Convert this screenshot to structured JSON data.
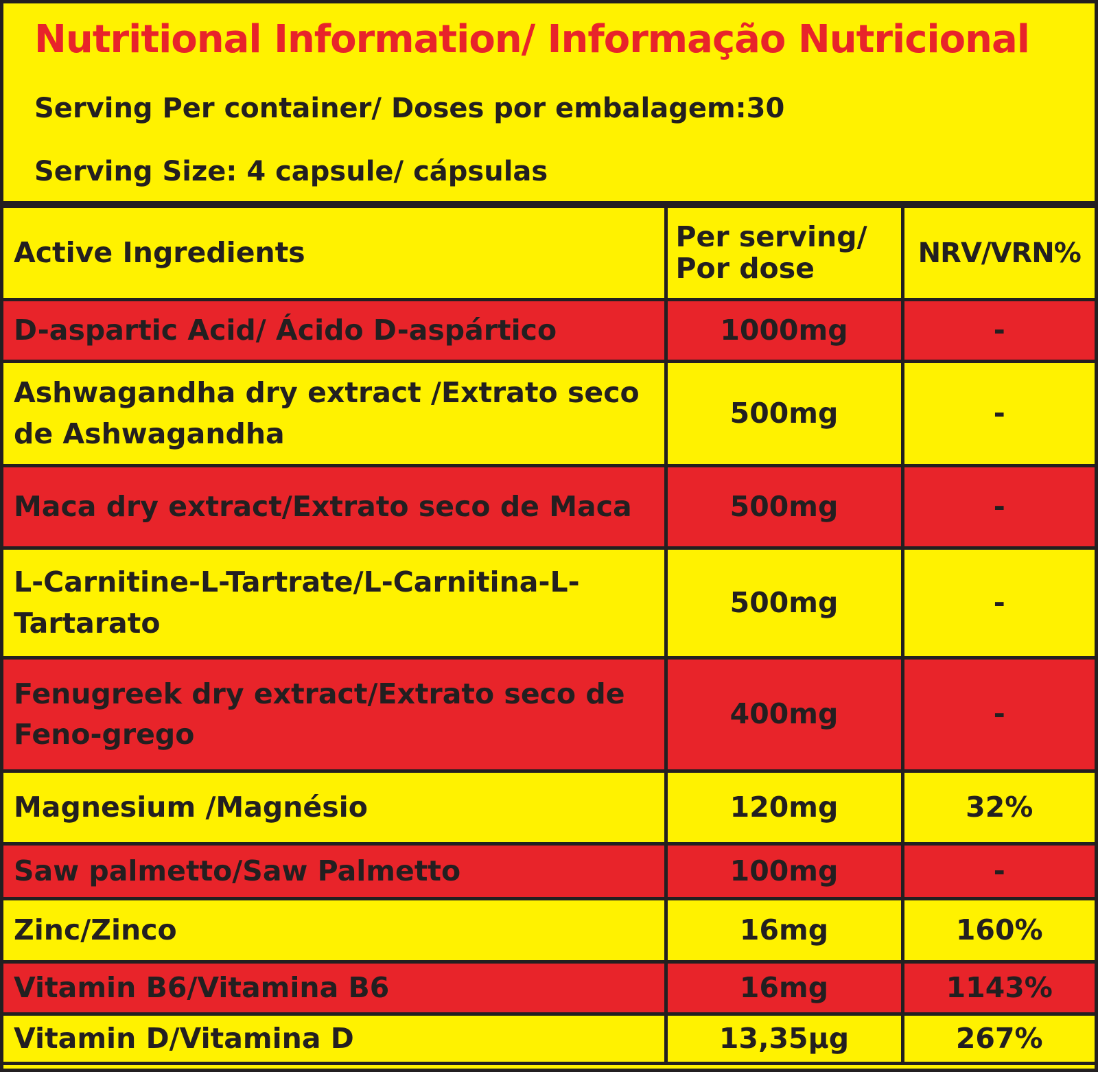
{
  "header": {
    "title": "Nutritional Information/ Informação Nutricional",
    "servings_per_container": "Serving Per container/ Doses por embalagem:30",
    "serving_size": "Serving Size: 4 capsule/ cápsulas"
  },
  "colors": {
    "yellow": "#fff200",
    "red": "#e8242a",
    "text": "#231f20"
  },
  "table": {
    "headers": {
      "ingredient": "Active Ingredients",
      "per_serving_line1": "Per serving/",
      "per_serving_line2": "Por dose",
      "nrv": "NRV/VRN%"
    },
    "rows": [
      {
        "ingredient": "D-aspartic Acid/ Ácido D-aspártico",
        "amount": "1000mg",
        "nrv": "-"
      },
      {
        "ingredient": "Ashwagandha dry extract /Extrato seco de Ashwagandha",
        "amount": "500mg",
        "nrv": "-"
      },
      {
        "ingredient": "Maca dry extract/Extrato seco de Maca",
        "amount": "500mg",
        "nrv": "-"
      },
      {
        "ingredient": "L-Carnitine-L-Tartrate/L-Carnitina-L-Tartarato",
        "amount": "500mg",
        "nrv": "-"
      },
      {
        "ingredient": "Fenugreek dry extract/Extrato seco de Feno-grego",
        "amount": "400mg",
        "nrv": "-"
      },
      {
        "ingredient": "Magnesium /Magnésio",
        "amount": "120mg",
        "nrv": "32%"
      },
      {
        "ingredient": "Saw palmetto/Saw Palmetto",
        "amount": "100mg",
        "nrv": "-"
      },
      {
        "ingredient": "Zinc/Zinco",
        "amount": "16mg",
        "nrv": "160%"
      },
      {
        "ingredient": "Vitamin B6/Vitamina B6",
        "amount": "16mg",
        "nrv": "1143%"
      },
      {
        "ingredient": "Vitamin D/Vitamina D",
        "amount": "13,35µg",
        "nrv": "267%"
      }
    ]
  }
}
